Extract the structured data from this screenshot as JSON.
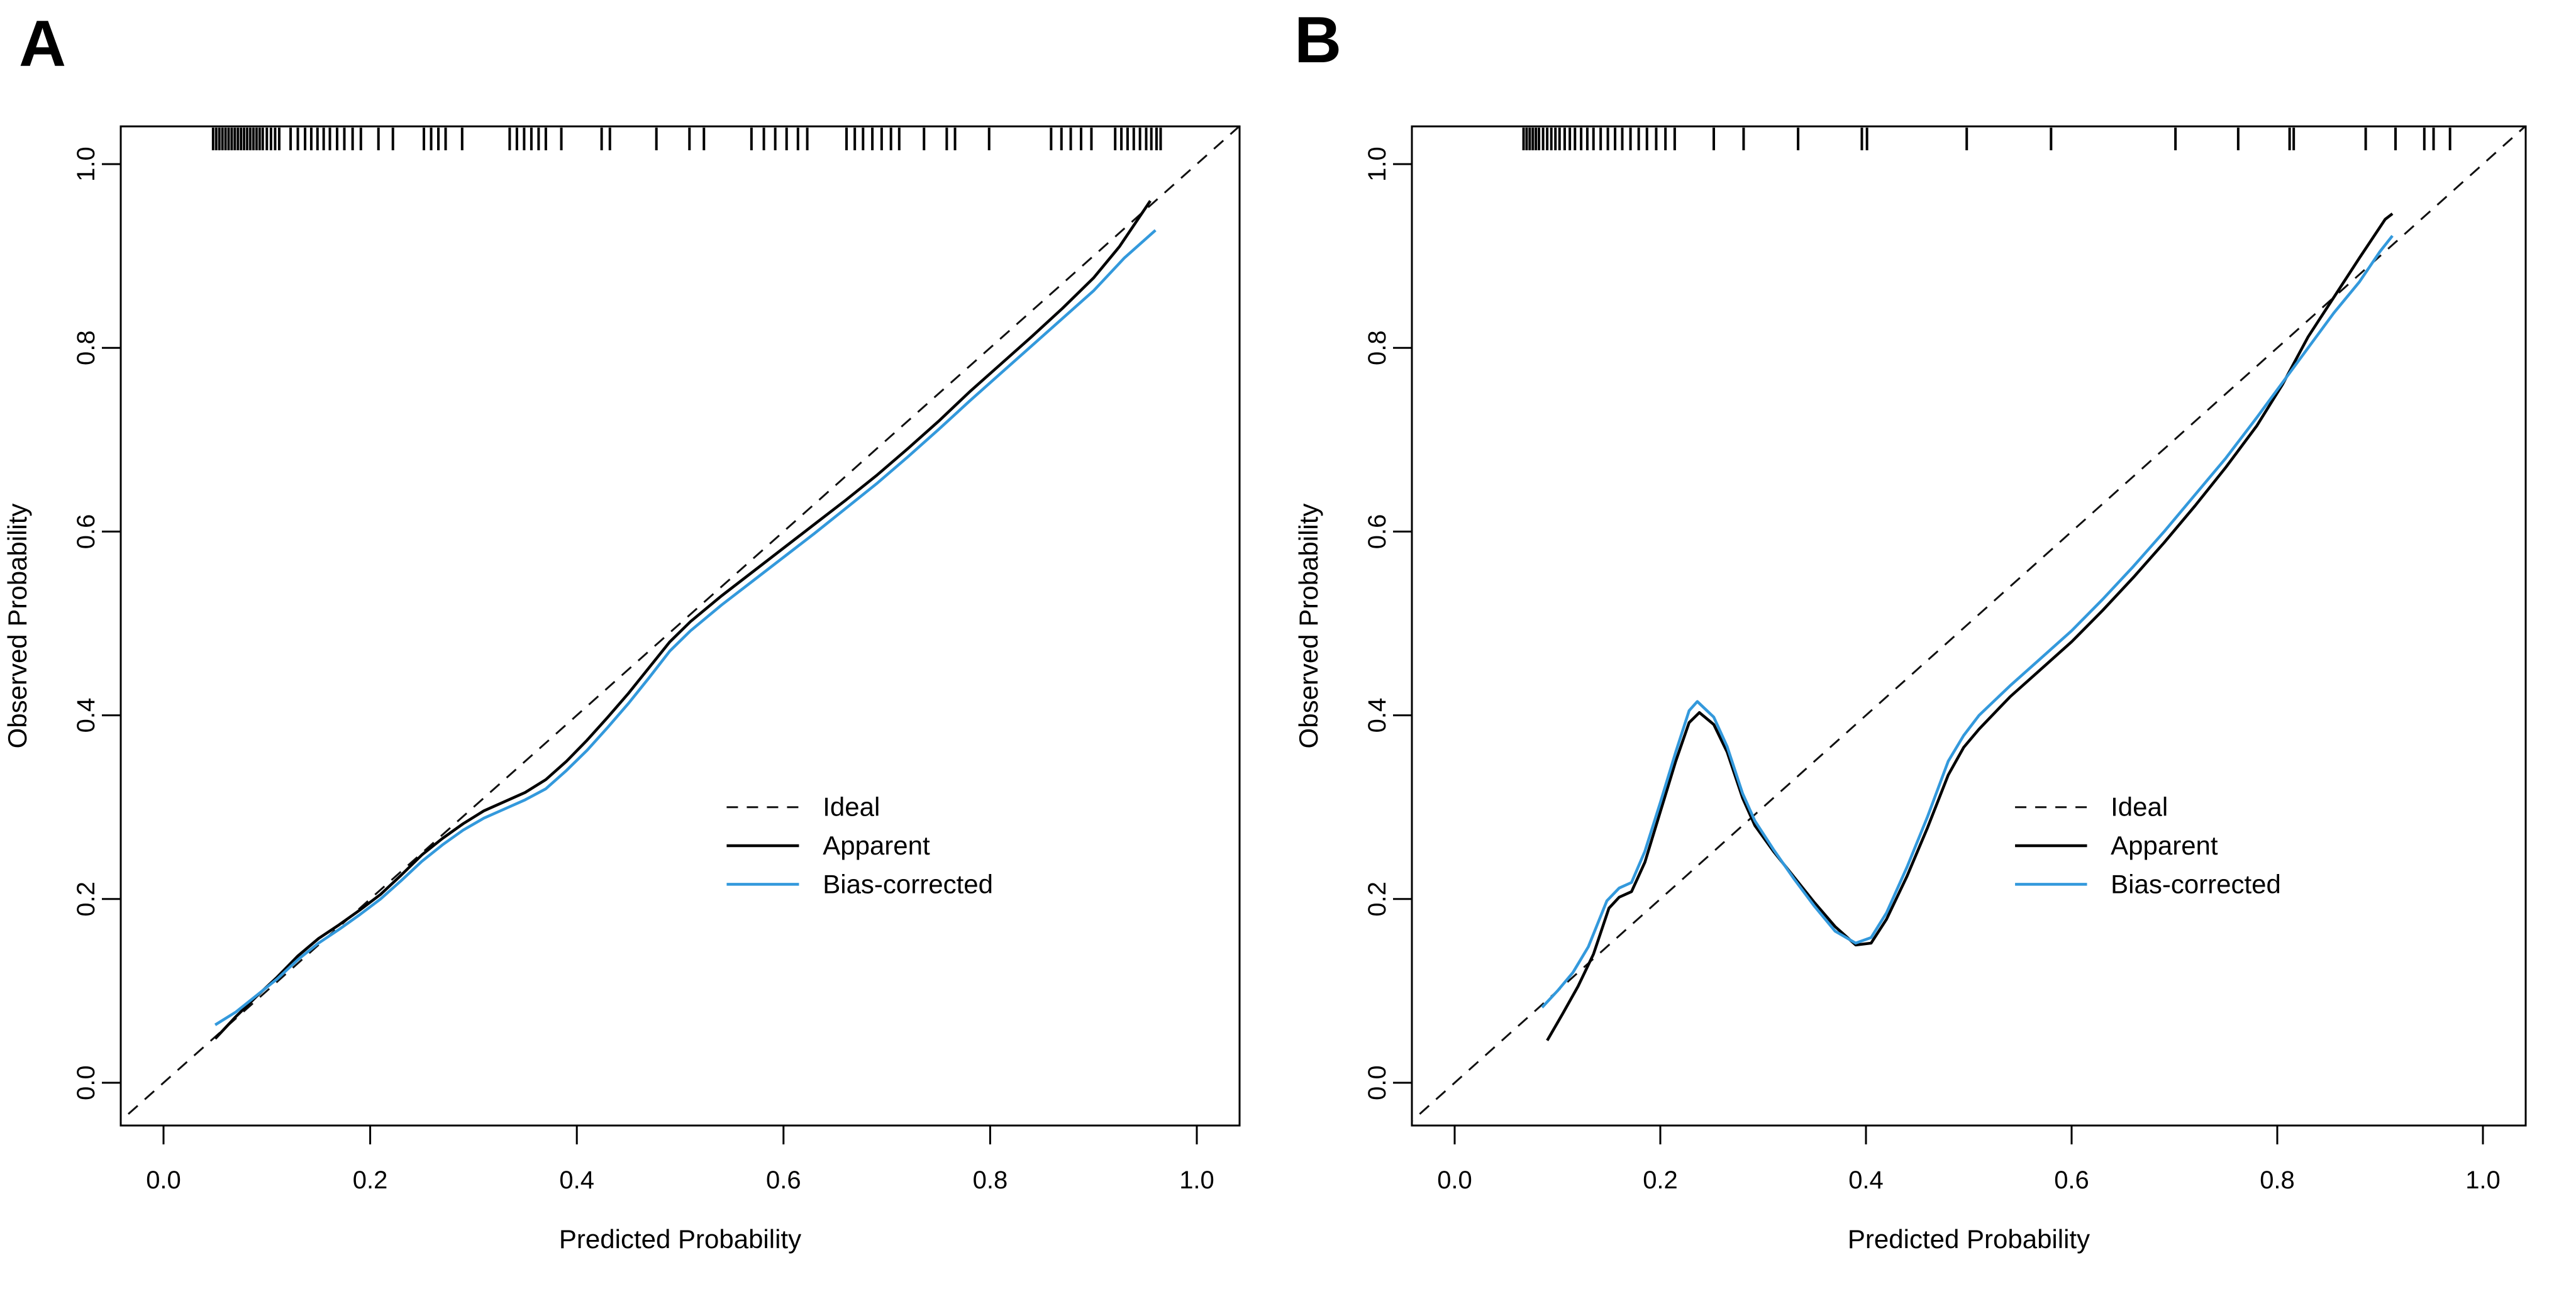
{
  "panel_a_label": "A",
  "panel_b_label": "B",
  "chart_data": [
    {
      "type": "line",
      "panel_label": "A",
      "xlabel": "Predicted Probability",
      "ylabel": "Observed Probability",
      "xlim": [
        -0.04,
        1.04
      ],
      "ylim": [
        -0.04,
        1.04
      ],
      "x_ticks": [
        0.0,
        0.2,
        0.4,
        0.6,
        0.8,
        1.0
      ],
      "y_ticks": [
        0.0,
        0.2,
        0.4,
        0.6,
        0.8,
        1.0
      ],
      "grid": false,
      "legend_position": "inside-right-lower",
      "series": [
        {
          "name": "Ideal",
          "style": "dashed",
          "color": "#111111",
          "points": [
            [
              -0.05,
              -0.05
            ],
            [
              1.05,
              1.05
            ]
          ]
        },
        {
          "name": "Apparent",
          "style": "solid",
          "color": "#000000",
          "points": [
            [
              0.05,
              0.048
            ],
            [
              0.07,
              0.072
            ],
            [
              0.09,
              0.094
            ],
            [
              0.11,
              0.115
            ],
            [
              0.13,
              0.138
            ],
            [
              0.15,
              0.157
            ],
            [
              0.17,
              0.172
            ],
            [
              0.19,
              0.188
            ],
            [
              0.21,
              0.205
            ],
            [
              0.23,
              0.226
            ],
            [
              0.25,
              0.248
            ],
            [
              0.27,
              0.266
            ],
            [
              0.29,
              0.282
            ],
            [
              0.31,
              0.296
            ],
            [
              0.33,
              0.306
            ],
            [
              0.35,
              0.316
            ],
            [
              0.37,
              0.33
            ],
            [
              0.39,
              0.35
            ],
            [
              0.41,
              0.373
            ],
            [
              0.43,
              0.398
            ],
            [
              0.45,
              0.424
            ],
            [
              0.47,
              0.452
            ],
            [
              0.49,
              0.48
            ],
            [
              0.51,
              0.502
            ],
            [
              0.54,
              0.53
            ],
            [
              0.57,
              0.556
            ],
            [
              0.6,
              0.582
            ],
            [
              0.63,
              0.608
            ],
            [
              0.66,
              0.634
            ],
            [
              0.69,
              0.661
            ],
            [
              0.72,
              0.69
            ],
            [
              0.75,
              0.72
            ],
            [
              0.78,
              0.752
            ],
            [
              0.81,
              0.782
            ],
            [
              0.84,
              0.812
            ],
            [
              0.87,
              0.843
            ],
            [
              0.9,
              0.876
            ],
            [
              0.925,
              0.91
            ],
            [
              0.94,
              0.935
            ],
            [
              0.955,
              0.96
            ]
          ]
        },
        {
          "name": "Bias-corrected",
          "style": "solid",
          "color": "#3399DC",
          "points": [
            [
              0.05,
              0.063
            ],
            [
              0.07,
              0.077
            ],
            [
              0.09,
              0.095
            ],
            [
              0.11,
              0.113
            ],
            [
              0.13,
              0.134
            ],
            [
              0.15,
              0.152
            ],
            [
              0.17,
              0.167
            ],
            [
              0.19,
              0.183
            ],
            [
              0.21,
              0.2
            ],
            [
              0.23,
              0.22
            ],
            [
              0.25,
              0.241
            ],
            [
              0.27,
              0.259
            ],
            [
              0.29,
              0.275
            ],
            [
              0.31,
              0.288
            ],
            [
              0.33,
              0.298
            ],
            [
              0.35,
              0.308
            ],
            [
              0.37,
              0.32
            ],
            [
              0.39,
              0.34
            ],
            [
              0.41,
              0.362
            ],
            [
              0.43,
              0.387
            ],
            [
              0.45,
              0.413
            ],
            [
              0.47,
              0.441
            ],
            [
              0.49,
              0.47
            ],
            [
              0.51,
              0.492
            ],
            [
              0.54,
              0.52
            ],
            [
              0.57,
              0.546
            ],
            [
              0.6,
              0.572
            ],
            [
              0.63,
              0.598
            ],
            [
              0.66,
              0.625
            ],
            [
              0.69,
              0.652
            ],
            [
              0.72,
              0.681
            ],
            [
              0.75,
              0.711
            ],
            [
              0.78,
              0.742
            ],
            [
              0.81,
              0.772
            ],
            [
              0.84,
              0.802
            ],
            [
              0.87,
              0.832
            ],
            [
              0.9,
              0.862
            ],
            [
              0.93,
              0.898
            ],
            [
              0.96,
              0.928
            ]
          ]
        }
      ],
      "rug_x": [
        0.048,
        0.051,
        0.054,
        0.057,
        0.06,
        0.063,
        0.066,
        0.069,
        0.072,
        0.075,
        0.078,
        0.081,
        0.084,
        0.087,
        0.09,
        0.093,
        0.096,
        0.1,
        0.104,
        0.108,
        0.112,
        0.123,
        0.13,
        0.137,
        0.143,
        0.149,
        0.155,
        0.161,
        0.168,
        0.175,
        0.183,
        0.191,
        0.208,
        0.222,
        0.252,
        0.259,
        0.266,
        0.273,
        0.289,
        0.335,
        0.342,
        0.349,
        0.356,
        0.363,
        0.37,
        0.385,
        0.424,
        0.432,
        0.477,
        0.509,
        0.523,
        0.569,
        0.581,
        0.592,
        0.603,
        0.614,
        0.623,
        0.661,
        0.669,
        0.677,
        0.686,
        0.695,
        0.704,
        0.712,
        0.736,
        0.758,
        0.766,
        0.799,
        0.859,
        0.869,
        0.878,
        0.888,
        0.898,
        0.921,
        0.927,
        0.933,
        0.939,
        0.945,
        0.951,
        0.956,
        0.961,
        0.965
      ]
    },
    {
      "type": "line",
      "panel_label": "B",
      "xlabel": "Predicted Probability",
      "ylabel": "Observed Probability",
      "xlim": [
        -0.04,
        1.04
      ],
      "ylim": [
        -0.04,
        1.04
      ],
      "x_ticks": [
        0.0,
        0.2,
        0.4,
        0.6,
        0.8,
        1.0
      ],
      "y_ticks": [
        0.0,
        0.2,
        0.4,
        0.6,
        0.8,
        1.0
      ],
      "grid": false,
      "legend_position": "inside-right-lower",
      "series": [
        {
          "name": "Ideal",
          "style": "dashed",
          "color": "#111111",
          "points": [
            [
              -0.05,
              -0.05
            ],
            [
              1.05,
              1.05
            ]
          ]
        },
        {
          "name": "Apparent",
          "style": "solid",
          "color": "#000000",
          "points": [
            [
              0.09,
              0.046
            ],
            [
              0.105,
              0.075
            ],
            [
              0.12,
              0.105
            ],
            [
              0.135,
              0.14
            ],
            [
              0.15,
              0.19
            ],
            [
              0.16,
              0.202
            ],
            [
              0.172,
              0.208
            ],
            [
              0.185,
              0.24
            ],
            [
              0.2,
              0.295
            ],
            [
              0.215,
              0.35
            ],
            [
              0.228,
              0.392
            ],
            [
              0.238,
              0.403
            ],
            [
              0.252,
              0.39
            ],
            [
              0.265,
              0.36
            ],
            [
              0.28,
              0.31
            ],
            [
              0.292,
              0.28
            ],
            [
              0.31,
              0.252
            ],
            [
              0.33,
              0.224
            ],
            [
              0.35,
              0.196
            ],
            [
              0.37,
              0.17
            ],
            [
              0.39,
              0.15
            ],
            [
              0.405,
              0.152
            ],
            [
              0.42,
              0.178
            ],
            [
              0.44,
              0.225
            ],
            [
              0.46,
              0.278
            ],
            [
              0.48,
              0.335
            ],
            [
              0.495,
              0.365
            ],
            [
              0.51,
              0.385
            ],
            [
              0.54,
              0.42
            ],
            [
              0.57,
              0.45
            ],
            [
              0.6,
              0.48
            ],
            [
              0.63,
              0.514
            ],
            [
              0.66,
              0.55
            ],
            [
              0.69,
              0.588
            ],
            [
              0.72,
              0.628
            ],
            [
              0.75,
              0.67
            ],
            [
              0.78,
              0.715
            ],
            [
              0.805,
              0.76
            ],
            [
              0.83,
              0.812
            ],
            [
              0.855,
              0.855
            ],
            [
              0.88,
              0.898
            ],
            [
              0.905,
              0.94
            ],
            [
              0.912,
              0.946
            ]
          ]
        },
        {
          "name": "Bias-corrected",
          "style": "solid",
          "color": "#3399DC",
          "points": [
            [
              0.085,
              0.082
            ],
            [
              0.1,
              0.1
            ],
            [
              0.115,
              0.12
            ],
            [
              0.13,
              0.148
            ],
            [
              0.148,
              0.198
            ],
            [
              0.16,
              0.212
            ],
            [
              0.172,
              0.218
            ],
            [
              0.185,
              0.252
            ],
            [
              0.2,
              0.305
            ],
            [
              0.215,
              0.36
            ],
            [
              0.228,
              0.405
            ],
            [
              0.236,
              0.415
            ],
            [
              0.252,
              0.398
            ],
            [
              0.265,
              0.366
            ],
            [
              0.28,
              0.315
            ],
            [
              0.292,
              0.285
            ],
            [
              0.31,
              0.254
            ],
            [
              0.33,
              0.222
            ],
            [
              0.35,
              0.192
            ],
            [
              0.37,
              0.165
            ],
            [
              0.39,
              0.152
            ],
            [
              0.405,
              0.158
            ],
            [
              0.42,
              0.185
            ],
            [
              0.44,
              0.235
            ],
            [
              0.46,
              0.29
            ],
            [
              0.48,
              0.35
            ],
            [
              0.495,
              0.378
            ],
            [
              0.51,
              0.4
            ],
            [
              0.54,
              0.432
            ],
            [
              0.57,
              0.462
            ],
            [
              0.6,
              0.492
            ],
            [
              0.63,
              0.526
            ],
            [
              0.66,
              0.562
            ],
            [
              0.69,
              0.6
            ],
            [
              0.72,
              0.64
            ],
            [
              0.75,
              0.68
            ],
            [
              0.78,
              0.724
            ],
            [
              0.805,
              0.762
            ],
            [
              0.83,
              0.8
            ],
            [
              0.855,
              0.838
            ],
            [
              0.88,
              0.872
            ],
            [
              0.9,
              0.905
            ],
            [
              0.912,
              0.922
            ]
          ]
        }
      ],
      "rug_x": [
        0.067,
        0.07,
        0.073,
        0.076,
        0.079,
        0.082,
        0.086,
        0.09,
        0.094,
        0.098,
        0.102,
        0.107,
        0.112,
        0.117,
        0.123,
        0.129,
        0.135,
        0.142,
        0.149,
        0.156,
        0.163,
        0.171,
        0.179,
        0.187,
        0.196,
        0.205,
        0.214,
        0.252,
        0.281,
        0.334,
        0.396,
        0.401,
        0.498,
        0.58,
        0.701,
        0.762,
        0.812,
        0.816,
        0.886,
        0.915,
        0.943,
        0.952,
        0.968
      ]
    }
  ]
}
